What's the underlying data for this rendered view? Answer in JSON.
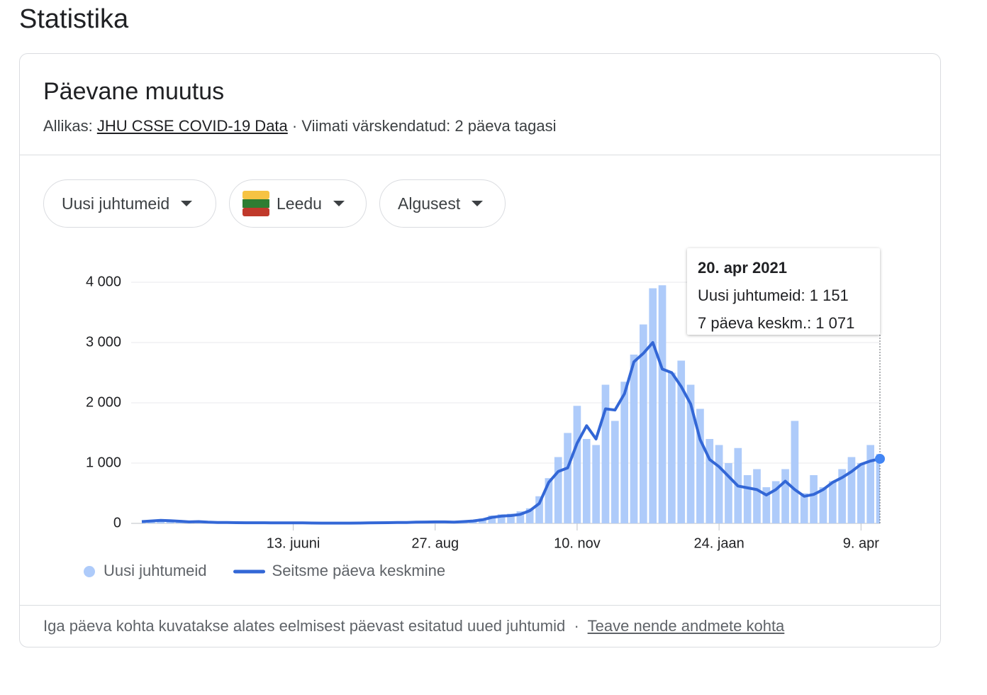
{
  "header": {
    "title": "Statistika"
  },
  "card": {
    "title": "Päevane muutus",
    "source_label": "Allikas:",
    "source_link": "JHU CSSE COVID-19 Data",
    "separator": "·",
    "updated": "Viimati värskendatud: 2 päeva tagasi"
  },
  "filters": [
    "Uusi juhtumeid",
    "Leedu",
    "Algusest"
  ],
  "chart_data": {
    "type": "combo",
    "categories": [
      null,
      null,
      null,
      null,
      null,
      null,
      null,
      null,
      null,
      null,
      null,
      null,
      null,
      null,
      null,
      null,
      "13. juuni",
      null,
      null,
      null,
      null,
      null,
      null,
      null,
      null,
      null,
      null,
      null,
      null,
      null,
      null,
      "27. aug",
      null,
      null,
      null,
      null,
      null,
      null,
      null,
      null,
      null,
      null,
      null,
      null,
      null,
      null,
      "10. nov",
      null,
      null,
      null,
      null,
      null,
      null,
      null,
      null,
      null,
      null,
      null,
      null,
      null,
      null,
      "24. jaan",
      null,
      null,
      null,
      null,
      null,
      null,
      null,
      null,
      null,
      null,
      null,
      null,
      null,
      null,
      "9. apr",
      null,
      null
    ],
    "series": [
      {
        "name": "Uusi juhtumeid",
        "type": "bar",
        "color": "#aecbfa",
        "values": [
          35,
          45,
          60,
          40,
          30,
          20,
          35,
          15,
          20,
          10,
          15,
          10,
          12,
          8,
          5,
          10,
          10,
          5,
          8,
          5,
          6,
          4,
          8,
          5,
          10,
          12,
          15,
          18,
          20,
          25,
          28,
          30,
          35,
          20,
          40,
          50,
          80,
          130,
          150,
          160,
          200,
          250,
          450,
          750,
          1100,
          1500,
          1950,
          1400,
          1300,
          2300,
          1700,
          2350,
          2800,
          3300,
          3900,
          3950,
          2500,
          2700,
          2300,
          1900,
          1400,
          1300,
          1000,
          1250,
          800,
          900,
          600,
          700,
          900,
          1700,
          500,
          800,
          600,
          700,
          900,
          1100,
          1000,
          1300,
          1151
        ]
      },
      {
        "name": "Seitsme päeva keskmine",
        "type": "line",
        "color": "#3367d6",
        "values": [
          30,
          40,
          50,
          45,
          35,
          25,
          30,
          20,
          15,
          15,
          12,
          10,
          10,
          10,
          8,
          8,
          8,
          8,
          6,
          5,
          5,
          5,
          5,
          6,
          8,
          10,
          12,
          15,
          15,
          20,
          22,
          25,
          25,
          20,
          30,
          40,
          60,
          100,
          120,
          130,
          150,
          210,
          330,
          680,
          860,
          920,
          1330,
          1620,
          1400,
          1900,
          1880,
          2150,
          2680,
          2820,
          3000,
          2560,
          2500,
          2270,
          1980,
          1390,
          1060,
          940,
          780,
          620,
          590,
          560,
          470,
          560,
          700,
          560,
          450,
          480,
          560,
          680,
          760,
          860,
          980,
          1035,
          1071
        ]
      }
    ],
    "ylim": [
      0,
      4000
    ],
    "yticks": [
      0,
      {
        "value": 1000,
        "label": "1 000"
      },
      {
        "value": 2000,
        "label": "2 000"
      },
      {
        "value": 3000,
        "label": "3 000"
      },
      {
        "value": 4000,
        "label": "4 000"
      }
    ],
    "grid": true,
    "tooltip": {
      "title": "20. apr 2021",
      "lines": [
        "Uusi juhtumeid: 1 151",
        "7 päeva keskm.: 1 071"
      ]
    }
  },
  "footer": {
    "note": "Iga päeva kohta kuvatakse alates eelmisest päevast esitatud uued juhtumid",
    "separator": "·",
    "link": "Teave nende andmete kohta"
  }
}
